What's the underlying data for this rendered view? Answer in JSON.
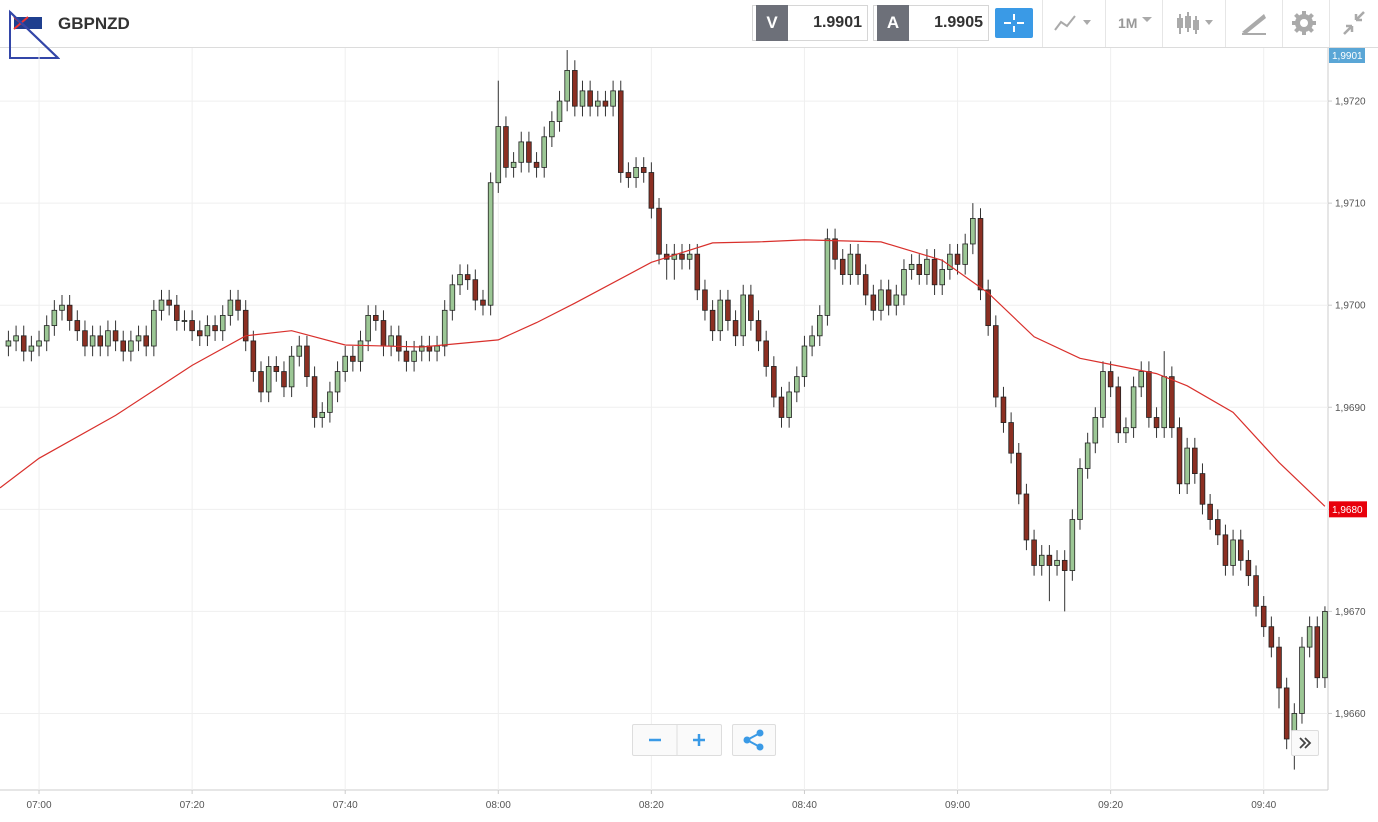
{
  "header": {
    "symbol": "GBPNZD",
    "sell_label": "V",
    "sell_price": "1.9901",
    "buy_label": "A",
    "buy_price": "1.9905",
    "timeframe": "1M"
  },
  "chart_data": {
    "type": "candlestick",
    "up_color": "#9cc795",
    "down_color": "#8c2f22",
    "grid": true,
    "xlim": [
      -5.1,
      168.4
    ],
    "ylim": [
      1.96525,
      1.97252
    ],
    "xticks": [
      {
        "value": 0,
        "label": "07:00"
      },
      {
        "value": 20,
        "label": "07:20"
      },
      {
        "value": 40,
        "label": "07:40"
      },
      {
        "value": 60,
        "label": "08:00"
      },
      {
        "value": 80,
        "label": "08:20"
      },
      {
        "value": 100,
        "label": "08:40"
      },
      {
        "value": 120,
        "label": "09:00"
      },
      {
        "value": 140,
        "label": "09:20"
      },
      {
        "value": 160,
        "label": "09:40"
      }
    ],
    "yticks": [
      {
        "value": 1.966,
        "label": "1,9660"
      },
      {
        "value": 1.967,
        "label": "1,9670"
      },
      {
        "value": 1.968,
        "label": "1,9680"
      },
      {
        "value": 1.969,
        "label": "1,9690"
      },
      {
        "value": 1.97,
        "label": "1,9700"
      },
      {
        "value": 1.971,
        "label": "1,9710"
      },
      {
        "value": 1.972,
        "label": "1,9720"
      }
    ],
    "bid_tag": "1,9901",
    "last_tag": {
      "value": 1.968,
      "label": "1,9680",
      "color": "#e8000b"
    },
    "x": [
      -4,
      -3,
      -2,
      -1,
      0,
      1,
      2,
      3,
      4,
      5,
      6,
      7,
      8,
      9,
      10,
      11,
      12,
      13,
      14,
      15,
      16,
      17,
      18,
      19,
      20,
      21,
      22,
      23,
      24,
      25,
      26,
      27,
      28,
      29,
      30,
      31,
      32,
      33,
      34,
      35,
      36,
      37,
      38,
      39,
      40,
      41,
      42,
      43,
      44,
      45,
      46,
      47,
      48,
      49,
      50,
      51,
      52,
      53,
      54,
      55,
      56,
      57,
      58,
      59,
      60,
      61,
      62,
      63,
      64,
      65,
      66,
      67,
      68,
      69,
      70,
      71,
      72,
      73,
      74,
      75,
      76,
      77,
      78,
      79,
      80,
      81,
      82,
      83,
      84,
      85,
      86,
      87,
      88,
      89,
      90,
      91,
      92,
      93,
      94,
      95,
      96,
      97,
      98,
      99,
      100,
      101,
      102,
      103,
      104,
      105,
      106,
      107,
      108,
      109,
      110,
      111,
      112,
      113,
      114,
      115,
      116,
      117,
      118,
      119,
      120,
      121,
      122,
      123,
      124,
      125,
      126,
      127,
      128,
      129,
      130,
      131,
      132,
      133,
      134,
      135,
      136,
      137,
      138,
      139,
      140,
      141,
      142,
      143,
      144,
      145,
      146,
      147,
      148,
      149,
      150,
      151,
      152,
      153,
      154,
      155,
      156,
      157,
      158,
      159,
      160,
      161,
      162,
      163,
      164,
      165,
      166,
      167,
      168
    ],
    "open": [
      1.9696,
      1.96965,
      1.9697,
      1.96955,
      1.9696,
      1.96965,
      1.9698,
      1.96995,
      1.97,
      1.96985,
      1.96975,
      1.9696,
      1.9697,
      1.9696,
      1.96975,
      1.96965,
      1.96955,
      1.96965,
      1.9697,
      1.9696,
      1.96995,
      1.97005,
      1.97,
      1.96985,
      1.96985,
      1.96975,
      1.9697,
      1.9698,
      1.96975,
      1.9699,
      1.97005,
      1.96995,
      1.96965,
      1.96935,
      1.96915,
      1.9694,
      1.96935,
      1.9692,
      1.9695,
      1.9696,
      1.9693,
      1.9689,
      1.96895,
      1.96915,
      1.96935,
      1.9695,
      1.96945,
      1.96965,
      1.9699,
      1.96985,
      1.9696,
      1.9697,
      1.96955,
      1.96945,
      1.96955,
      1.9696,
      1.96955,
      1.9696,
      1.96995,
      1.9702,
      1.9703,
      1.97025,
      1.97005,
      1.97,
      1.9712,
      1.97175,
      1.97135,
      1.9714,
      1.9716,
      1.9714,
      1.97135,
      1.97165,
      1.9718,
      1.972,
      1.9723,
      1.97195,
      1.9721,
      1.97195,
      1.972,
      1.97195,
      1.9721,
      1.9713,
      1.97125,
      1.97135,
      1.9713,
      1.97095,
      1.9705,
      1.97045,
      1.9705,
      1.97045,
      1.9705,
      1.97015,
      1.96995,
      1.96975,
      1.97005,
      1.96985,
      1.9697,
      1.9701,
      1.96985,
      1.96965,
      1.9694,
      1.9691,
      1.9689,
      1.96915,
      1.9693,
      1.9696,
      1.9697,
      1.9699,
      1.97065,
      1.97045,
      1.9703,
      1.9705,
      1.9703,
      1.9701,
      1.96995,
      1.97015,
      1.97,
      1.9701,
      1.97035,
      1.9704,
      1.9703,
      1.97045,
      1.9702,
      1.97035,
      1.9705,
      1.9704,
      1.9706,
      1.97085,
      1.97015,
      1.9698,
      1.9691,
      1.96885,
      1.96855,
      1.96815,
      1.9677,
      1.96745,
      1.96755,
      1.96745,
      1.9675,
      1.9674,
      1.9679,
      1.9684,
      1.96865,
      1.9689,
      1.96935,
      1.9692,
      1.96875,
      1.9688,
      1.9692,
      1.96935,
      1.9689,
      1.9688,
      1.9693,
      1.9688,
      1.96825,
      1.9686,
      1.96835,
      1.96805,
      1.9679,
      1.96775,
      1.96745,
      1.9677,
      1.9675,
      1.96735,
      1.96705,
      1.96685,
      1.96665,
      1.96625,
      1.96575,
      1.966,
      1.96665,
      1.96685,
      1.96635
    ],
    "high": [
      1.96975,
      1.9698,
      1.9698,
      1.9697,
      1.96975,
      1.9699,
      1.97005,
      1.9701,
      1.9701,
      1.96995,
      1.96985,
      1.9698,
      1.9698,
      1.96985,
      1.96985,
      1.96975,
      1.96975,
      1.9698,
      1.9698,
      1.97005,
      1.97015,
      1.97015,
      1.9701,
      1.96995,
      1.96995,
      1.96985,
      1.9699,
      1.9699,
      1.97,
      1.97015,
      1.97015,
      1.97005,
      1.96975,
      1.96945,
      1.9695,
      1.9695,
      1.96945,
      1.9696,
      1.9697,
      1.9697,
      1.9694,
      1.96905,
      1.96925,
      1.96945,
      1.9696,
      1.9696,
      1.96975,
      1.97,
      1.97,
      1.96995,
      1.9698,
      1.9698,
      1.96965,
      1.96965,
      1.9697,
      1.9697,
      1.9697,
      1.97005,
      1.9703,
      1.9704,
      1.9704,
      1.97035,
      1.97015,
      1.9713,
      1.9722,
      1.97185,
      1.9715,
      1.9717,
      1.9717,
      1.9715,
      1.97175,
      1.9719,
      1.9721,
      1.9725,
      1.9724,
      1.9722,
      1.9722,
      1.9721,
      1.9721,
      1.9722,
      1.9722,
      1.9714,
      1.97145,
      1.97145,
      1.9714,
      1.97105,
      1.9706,
      1.9706,
      1.9706,
      1.9706,
      1.9706,
      1.97025,
      1.97005,
      1.97015,
      1.97015,
      1.96995,
      1.9702,
      1.9702,
      1.96995,
      1.96975,
      1.9695,
      1.9692,
      1.96925,
      1.9694,
      1.9697,
      1.9698,
      1.97,
      1.97075,
      1.97075,
      1.97055,
      1.9706,
      1.9706,
      1.9704,
      1.9702,
      1.97025,
      1.97025,
      1.9702,
      1.97045,
      1.9705,
      1.9705,
      1.97055,
      1.97055,
      1.97045,
      1.9706,
      1.9706,
      1.9707,
      1.971,
      1.97095,
      1.97025,
      1.9699,
      1.9692,
      1.96895,
      1.96865,
      1.96825,
      1.9678,
      1.96765,
      1.96765,
      1.9676,
      1.9676,
      1.968,
      1.9685,
      1.96875,
      1.969,
      1.96945,
      1.96945,
      1.9693,
      1.9689,
      1.9693,
      1.96945,
      1.96945,
      1.969,
      1.96955,
      1.9694,
      1.9689,
      1.9687,
      1.9687,
      1.96845,
      1.96815,
      1.968,
      1.96785,
      1.9678,
      1.9678,
      1.9676,
      1.96745,
      1.96715,
      1.96695,
      1.96675,
      1.96635,
      1.9661,
      1.96675,
      1.96695,
      1.96695,
      1.96705
    ],
    "low": [
      1.9695,
      1.96955,
      1.96945,
      1.96945,
      1.9695,
      1.96955,
      1.9697,
      1.96985,
      1.96975,
      1.96965,
      1.9695,
      1.9695,
      1.9695,
      1.9695,
      1.96955,
      1.96945,
      1.96945,
      1.96955,
      1.9695,
      1.9695,
      1.96985,
      1.9699,
      1.96975,
      1.96975,
      1.96965,
      1.9696,
      1.9696,
      1.96965,
      1.96965,
      1.9698,
      1.96985,
      1.96955,
      1.96925,
      1.96905,
      1.96905,
      1.96925,
      1.9691,
      1.9691,
      1.9694,
      1.9692,
      1.9688,
      1.9688,
      1.96885,
      1.96905,
      1.96925,
      1.96935,
      1.96935,
      1.96955,
      1.96975,
      1.9695,
      1.9695,
      1.96945,
      1.96935,
      1.96935,
      1.96945,
      1.96945,
      1.96945,
      1.9695,
      1.96985,
      1.9701,
      1.97015,
      1.96995,
      1.9699,
      1.9699,
      1.9711,
      1.97125,
      1.97125,
      1.9713,
      1.9713,
      1.97125,
      1.97125,
      1.97155,
      1.9717,
      1.9719,
      1.97185,
      1.97185,
      1.97185,
      1.97185,
      1.97185,
      1.97185,
      1.9712,
      1.97115,
      1.97115,
      1.9712,
      1.97085,
      1.9704,
      1.97025,
      1.97025,
      1.97035,
      1.97035,
      1.97005,
      1.96985,
      1.96965,
      1.96965,
      1.96975,
      1.9696,
      1.9696,
      1.96975,
      1.96955,
      1.9693,
      1.969,
      1.9688,
      1.9688,
      1.96905,
      1.9692,
      1.9695,
      1.9696,
      1.9698,
      1.97035,
      1.9702,
      1.9702,
      1.9702,
      1.97,
      1.96985,
      1.96985,
      1.9699,
      1.9699,
      1.97,
      1.97025,
      1.9702,
      1.9702,
      1.9701,
      1.9701,
      1.97025,
      1.9703,
      1.9703,
      1.9705,
      1.97005,
      1.9697,
      1.969,
      1.96875,
      1.96845,
      1.96805,
      1.9676,
      1.96735,
      1.96735,
      1.9671,
      1.96735,
      1.967,
      1.9673,
      1.9678,
      1.9683,
      1.96855,
      1.9688,
      1.9691,
      1.96865,
      1.96865,
      1.9687,
      1.9691,
      1.9688,
      1.9687,
      1.9687,
      1.9687,
      1.96815,
      1.96815,
      1.96825,
      1.96795,
      1.9678,
      1.96765,
      1.96735,
      1.96735,
      1.9674,
      1.96725,
      1.96695,
      1.96675,
      1.96655,
      1.96605,
      1.96565,
      1.96545,
      1.9659,
      1.96655,
      1.96625,
      1.96625
    ],
    "close": [
      1.96965,
      1.9697,
      1.96955,
      1.9696,
      1.96965,
      1.9698,
      1.96995,
      1.97,
      1.96985,
      1.96975,
      1.9696,
      1.9697,
      1.9696,
      1.96975,
      1.96965,
      1.96955,
      1.96965,
      1.9697,
      1.9696,
      1.96995,
      1.97005,
      1.97,
      1.96985,
      1.96985,
      1.96975,
      1.9697,
      1.9698,
      1.96975,
      1.9699,
      1.97005,
      1.96995,
      1.96965,
      1.96935,
      1.96915,
      1.9694,
      1.96935,
      1.9692,
      1.9695,
      1.9696,
      1.9693,
      1.9689,
      1.96895,
      1.96915,
      1.96935,
      1.9695,
      1.96945,
      1.96965,
      1.9699,
      1.96985,
      1.9696,
      1.9697,
      1.96955,
      1.96945,
      1.96955,
      1.9696,
      1.96955,
      1.9696,
      1.96995,
      1.9702,
      1.9703,
      1.97025,
      1.97005,
      1.97,
      1.9712,
      1.97175,
      1.97135,
      1.9714,
      1.9716,
      1.9714,
      1.97135,
      1.97165,
      1.9718,
      1.972,
      1.9723,
      1.97195,
      1.9721,
      1.97195,
      1.972,
      1.97195,
      1.9721,
      1.9713,
      1.97125,
      1.97135,
      1.9713,
      1.97095,
      1.9705,
      1.97045,
      1.9705,
      1.97045,
      1.9705,
      1.97015,
      1.96995,
      1.96975,
      1.97005,
      1.96985,
      1.9697,
      1.9701,
      1.96985,
      1.96965,
      1.9694,
      1.9691,
      1.9689,
      1.96915,
      1.9693,
      1.9696,
      1.9697,
      1.9699,
      1.97065,
      1.97045,
      1.9703,
      1.9705,
      1.9703,
      1.9701,
      1.96995,
      1.97015,
      1.97,
      1.9701,
      1.97035,
      1.9704,
      1.9703,
      1.97045,
      1.9702,
      1.97035,
      1.9705,
      1.9704,
      1.9706,
      1.97085,
      1.97015,
      1.9698,
      1.9691,
      1.96885,
      1.96855,
      1.96815,
      1.9677,
      1.96745,
      1.96755,
      1.96745,
      1.9675,
      1.9674,
      1.9679,
      1.9684,
      1.96865,
      1.9689,
      1.96935,
      1.9692,
      1.96875,
      1.9688,
      1.9692,
      1.96935,
      1.9689,
      1.9688,
      1.9693,
      1.9688,
      1.96825,
      1.9686,
      1.96835,
      1.96805,
      1.9679,
      1.96775,
      1.96745,
      1.9677,
      1.9675,
      1.96735,
      1.96705,
      1.96685,
      1.96665,
      1.96625,
      1.96575,
      1.966,
      1.96665,
      1.96685,
      1.96635,
      1.967
    ],
    "overlay": {
      "color": "#d9302c",
      "x": [
        -5.1,
        0,
        10,
        20,
        27,
        33,
        40,
        50,
        60,
        65,
        70,
        80,
        88,
        94,
        100,
        110,
        118,
        124,
        130,
        136,
        140,
        146,
        150,
        156,
        162,
        168
      ],
      "values": [
        1.96821,
        1.9685,
        1.96892,
        1.96941,
        1.9697,
        1.96975,
        1.96961,
        1.96959,
        1.96966,
        1.96983,
        1.97002,
        1.97042,
        1.97061,
        1.97062,
        1.97064,
        1.97062,
        1.97044,
        1.97012,
        1.96969,
        1.96948,
        1.96942,
        1.96933,
        1.96921,
        1.96895,
        1.96846,
        1.96803
      ]
    }
  }
}
